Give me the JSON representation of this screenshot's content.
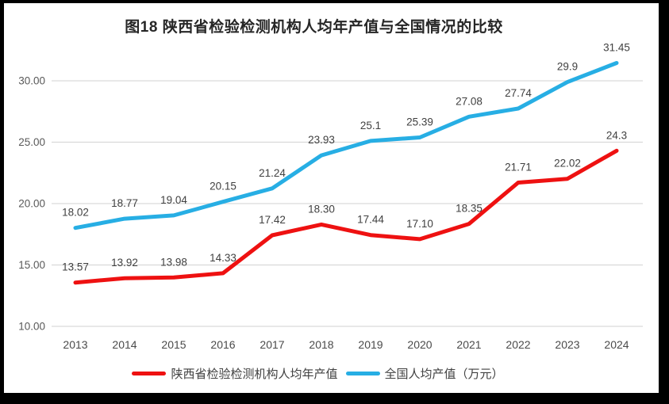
{
  "chart_data": {
    "type": "line",
    "title": "图18 陕西省检验检测机构人均年产值与全国情况的比较",
    "categories": [
      "2013",
      "2014",
      "2015",
      "2016",
      "2017",
      "2018",
      "2019",
      "2020",
      "2021",
      "2022",
      "2023",
      "2024"
    ],
    "series": [
      {
        "name": "陕西省检验检测机构人均年产值",
        "color": "#EE1111",
        "values": [
          13.57,
          13.92,
          13.98,
          14.33,
          17.42,
          18.3,
          17.44,
          17.1,
          18.35,
          21.71,
          22.02,
          24.3
        ],
        "point_labels": [
          "13.57",
          "13.92",
          "13.98",
          "14.33",
          "17.42",
          "18.30",
          "17.44",
          "17.10",
          "18.35",
          "21.71",
          "22.02",
          "24.3"
        ]
      },
      {
        "name": "全国人均产值（万元）",
        "color": "#27AEE4",
        "values": [
          18.02,
          18.77,
          19.04,
          20.15,
          21.24,
          23.93,
          25.1,
          25.39,
          27.08,
          27.74,
          29.9,
          31.45
        ],
        "point_labels": [
          "18.02",
          "18.77",
          "19.04",
          "20.15",
          "21.24",
          "23.93",
          "25.1",
          "25.39",
          "27.08",
          "27.74",
          "29.9",
          "31.45"
        ]
      }
    ],
    "y_axis": {
      "tick_labels": [
        "10.00",
        "15.00",
        "20.00",
        "25.00",
        "30.00"
      ],
      "min": 10,
      "max": 33.5,
      "step": 5
    },
    "x_axis": {
      "label": ""
    },
    "grid": true,
    "legend_position": "bottom",
    "colors": {
      "gridline": "#D9D9D9",
      "frame": "#000000",
      "axis_label": "#595959",
      "x_label": "#4A4A4A",
      "data_label": "#404040",
      "background": "#FFFFFF"
    }
  }
}
